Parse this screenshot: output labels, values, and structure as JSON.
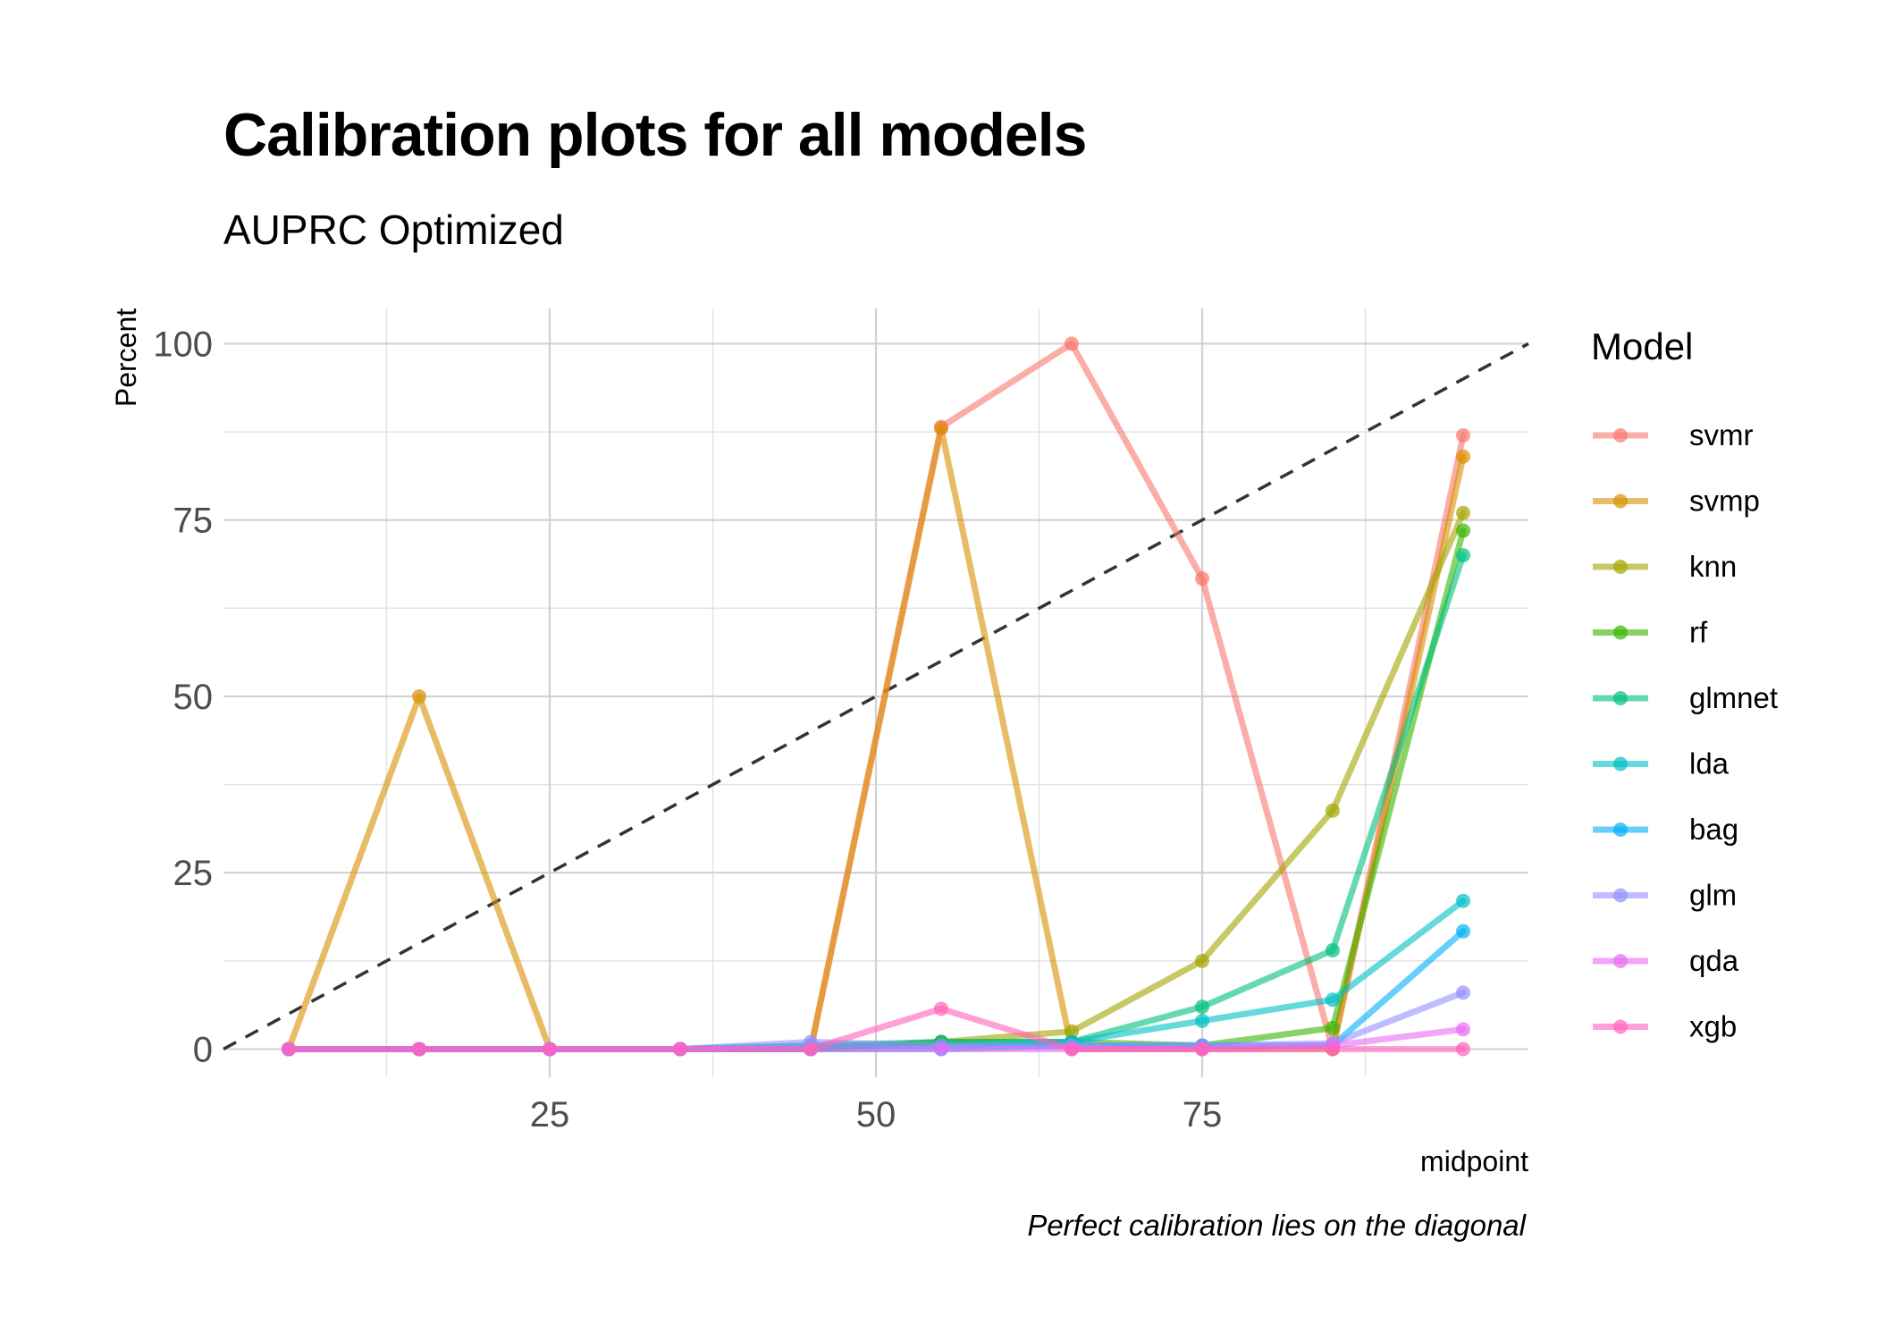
{
  "chart_data": {
    "type": "line",
    "title": "Calibration plots for all models",
    "subtitle": "AUPRC Optimized",
    "caption": "Perfect calibration lies on the diagonal",
    "xlabel": "midpoint",
    "ylabel": "Percent",
    "xlim": [
      0,
      100
    ],
    "ylim": [
      -4,
      105
    ],
    "x_ticks": [
      25,
      50,
      75
    ],
    "y_ticks": [
      0,
      25,
      50,
      75,
      100
    ],
    "grid": true,
    "reference_line": "diagonal y = x (dashed)",
    "legend_title": "Model",
    "legend_position": "right",
    "x": [
      5,
      15,
      25,
      35,
      45,
      55,
      65,
      75,
      85,
      95
    ],
    "series": [
      {
        "name": "svmr",
        "color": "#F8766D",
        "values": [
          0,
          0,
          0,
          0,
          0,
          88.2,
          100,
          66.7,
          0,
          87
        ]
      },
      {
        "name": "svmp",
        "color": "#D89000",
        "values": [
          0,
          50,
          0,
          0,
          0,
          88,
          0,
          0,
          0,
          84
        ]
      },
      {
        "name": "knn",
        "color": "#A3A500",
        "values": [
          0,
          0,
          0,
          0,
          0,
          1,
          2.5,
          12.5,
          33.8,
          76
        ]
      },
      {
        "name": "rf",
        "color": "#39B600",
        "values": [
          0,
          0,
          0,
          0,
          0,
          1,
          1,
          0.5,
          3,
          73.5
        ]
      },
      {
        "name": "glmnet",
        "color": "#00BF7D",
        "values": [
          0,
          0,
          0,
          0,
          0.5,
          1,
          1,
          6,
          14,
          70
        ]
      },
      {
        "name": "lda",
        "color": "#00BFC4",
        "values": [
          0,
          0,
          0,
          0,
          0.5,
          0.5,
          1,
          4,
          7,
          21
        ]
      },
      {
        "name": "bag",
        "color": "#00B0F6",
        "values": [
          0,
          0,
          0,
          0,
          0,
          0,
          0.5,
          0.5,
          0.5,
          16.7
        ]
      },
      {
        "name": "glm",
        "color": "#9590FF",
        "values": [
          0,
          0,
          0,
          0,
          1,
          0.5,
          0.5,
          0.5,
          0.8,
          8
        ]
      },
      {
        "name": "qda",
        "color": "#E76BF3",
        "values": [
          0,
          0,
          0,
          0,
          0,
          0,
          0,
          0,
          0.5,
          2.8
        ]
      },
      {
        "name": "xgb",
        "color": "#FF62BC",
        "values": [
          0,
          0,
          0,
          0,
          0,
          5.7,
          0,
          0,
          0,
          0
        ]
      }
    ]
  }
}
